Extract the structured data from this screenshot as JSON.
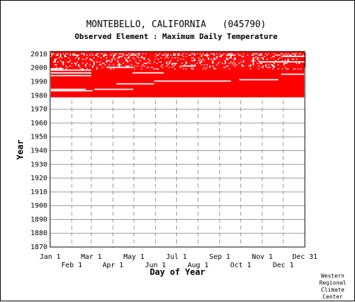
{
  "chart_data": {
    "type": "heatmap",
    "title": "MONTEBELLO, CALIFORNIA   (045790)",
    "subtitle": "Observed Element : Maximum Daily Temperature",
    "xlabel": "Day of Year",
    "ylabel": "Year",
    "x_ticks_top_row": [
      "Jan 1",
      "Mar 1",
      "May 1",
      "Jul 1",
      "Sep 1",
      "Nov 1",
      "Dec 31"
    ],
    "x_ticks_bottom_row": [
      "Feb 1",
      "Apr 1",
      "Jun 1",
      "Aug 1",
      "Oct 1",
      "Dec 1"
    ],
    "x_tick_days": [
      1,
      32,
      60,
      91,
      121,
      152,
      182,
      213,
      244,
      274,
      305,
      335,
      366
    ],
    "x_tick_labels_ordered": [
      "Jan 1",
      "Feb 1",
      "Mar 1",
      "Apr 1",
      "May 1",
      "Jun 1",
      "Jul 1",
      "Aug 1",
      "Sep 1",
      "Oct 1",
      "Nov 1",
      "Dec 1",
      "Dec 31"
    ],
    "ylim": [
      1870,
      2012
    ],
    "y_ticks": [
      2010,
      2000,
      1990,
      1980,
      1970,
      1960,
      1950,
      1940,
      1930,
      1920,
      1910,
      1900,
      1890,
      1880,
      1870
    ],
    "grid": true,
    "data_color": "#ff0000",
    "record_start_year": 1979,
    "record_end_year": 2011,
    "missing_segments": [
      {
        "year": 1983,
        "start_day": 1,
        "end_day": 62
      },
      {
        "year": 1984,
        "start_day": 1,
        "end_day": 52
      },
      {
        "year": 1984,
        "start_day": 64,
        "end_day": 120
      },
      {
        "year": 1988,
        "start_day": 96,
        "end_day": 150
      },
      {
        "year": 1990,
        "start_day": 150,
        "end_day": 260
      },
      {
        "year": 1991,
        "start_day": 272,
        "end_day": 328
      },
      {
        "year": 1994,
        "start_day": 1,
        "end_day": 60
      },
      {
        "year": 1995,
        "start_day": 332,
        "end_day": 366
      },
      {
        "year": 1996,
        "start_day": 1,
        "end_day": 60
      },
      {
        "year": 1996,
        "start_day": 119,
        "end_day": 164
      },
      {
        "year": 1998,
        "start_day": 1,
        "end_day": 60
      },
      {
        "year": 1999,
        "start_day": 1,
        "end_day": 20
      },
      {
        "year": 2000,
        "start_day": 82,
        "end_day": 120
      },
      {
        "year": 2001,
        "start_day": 190,
        "end_day": 210
      },
      {
        "year": 2004,
        "start_day": 300,
        "end_day": 366
      },
      {
        "year": 2008,
        "start_day": 332,
        "end_day": 366
      }
    ],
    "sparse_years": [
      1999,
      2000,
      2001,
      2002,
      2003,
      2004,
      2005,
      2006,
      2007,
      2008,
      2009,
      2010
    ]
  },
  "credit_lines": [
    "Western",
    "Regional",
    "Climate",
    "Center"
  ]
}
